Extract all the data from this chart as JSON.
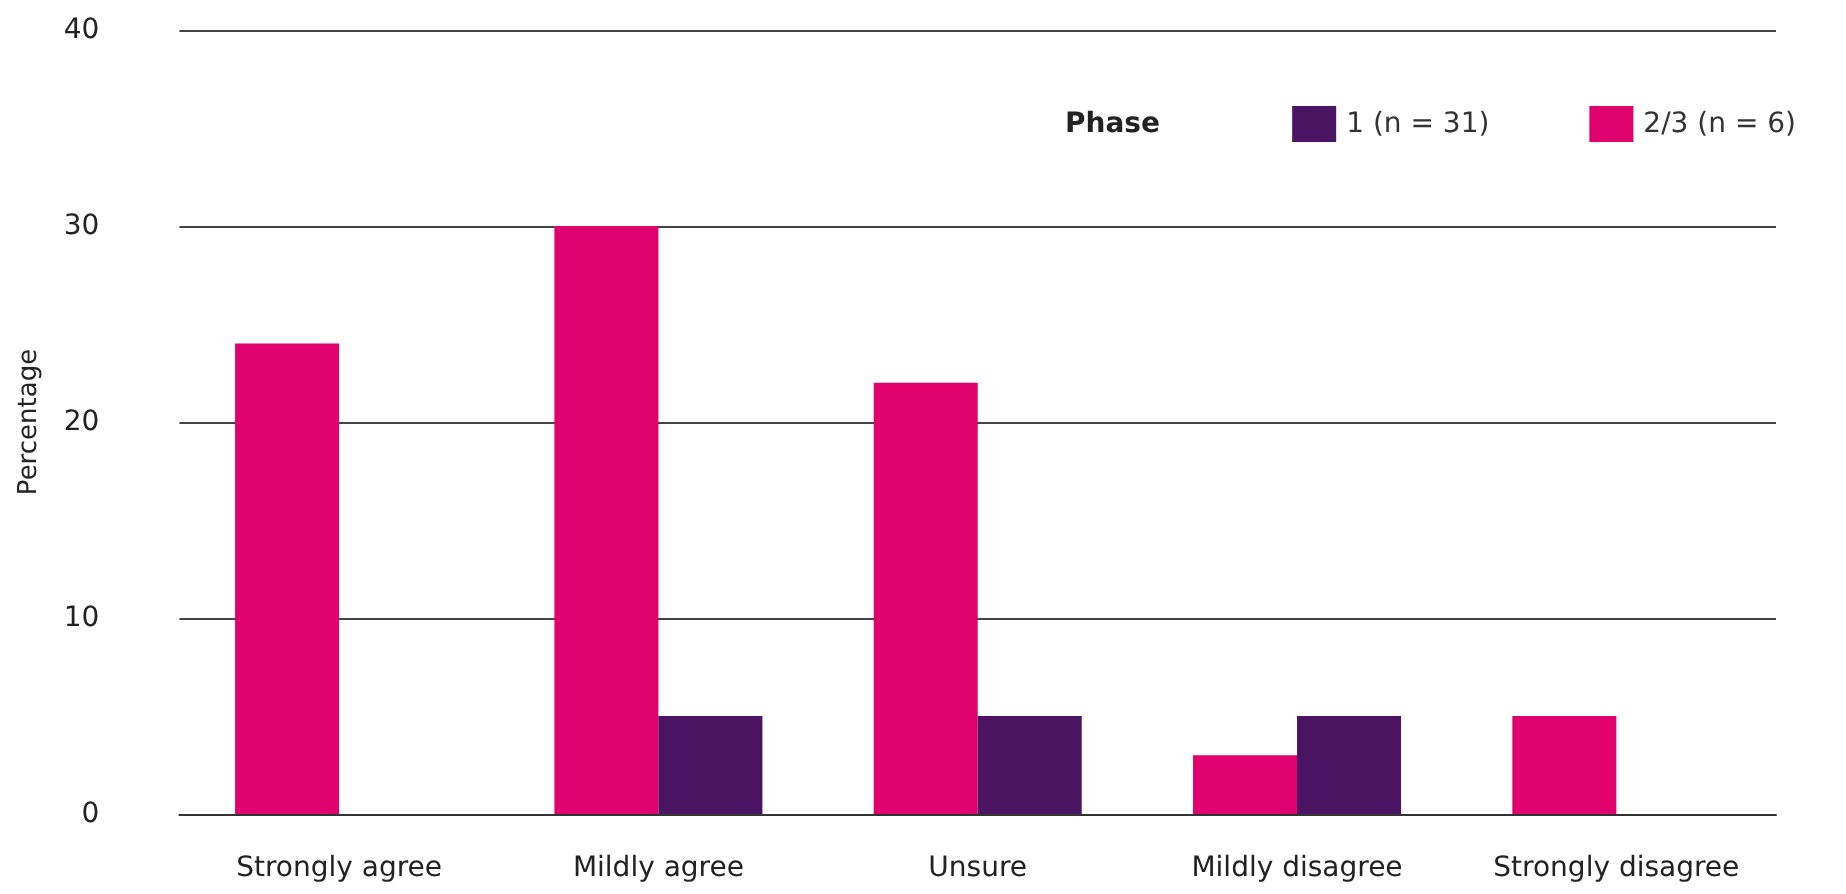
{
  "chart_data": {
    "type": "bar",
    "ylabel": "Percentage",
    "legend_title": "Phase",
    "categories": [
      "Strongly agree",
      "Mildly agree",
      "Unsure",
      "Mildly disagree",
      "Strongly disagree"
    ],
    "series": [
      {
        "name": "1 (n = 31)",
        "color": "#4a1463",
        "values": [
          0,
          5,
          5,
          5,
          0
        ]
      },
      {
        "name": "2/3 (n = 6)",
        "color": "#e0006e",
        "values": [
          24,
          30,
          22,
          3,
          5
        ]
      }
    ],
    "ylim": [
      0,
      40
    ],
    "yticks": [
      0,
      10,
      20,
      30,
      40
    ],
    "grid": "y",
    "legend": "top right"
  }
}
